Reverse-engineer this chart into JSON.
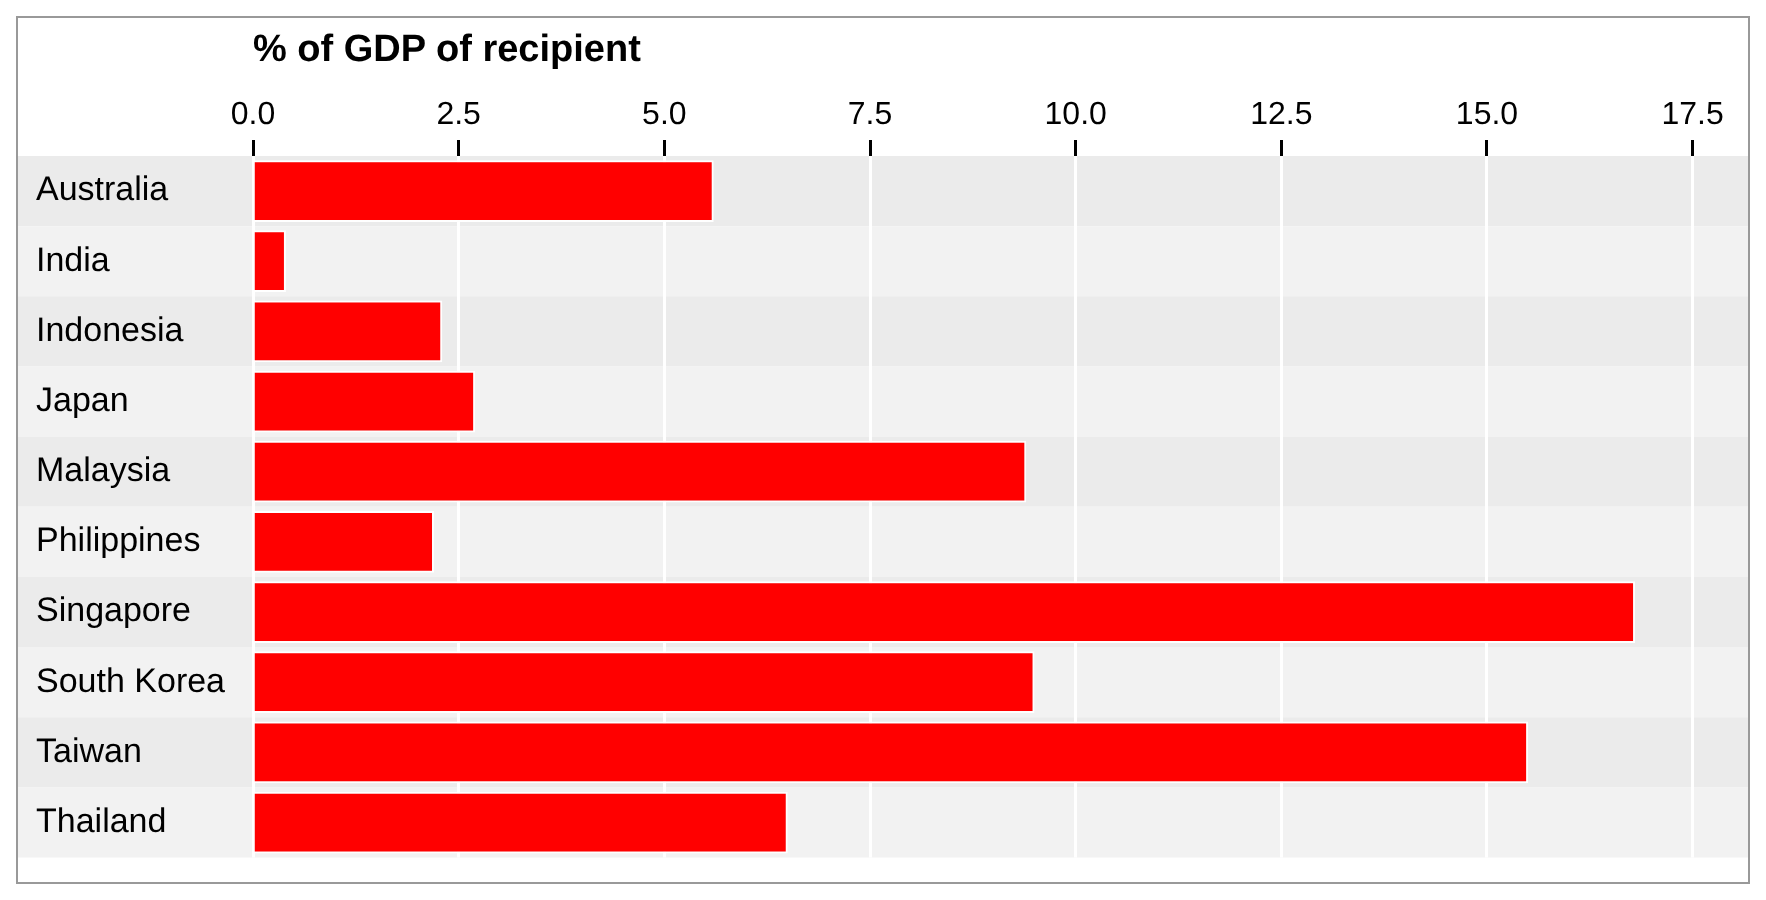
{
  "chart_data": {
    "type": "bar",
    "orientation": "horizontal",
    "xlabel": "% of GDP of recipient",
    "categories": [
      "Australia",
      "India",
      "Indonesia",
      "Japan",
      "Malaysia",
      "Philippines",
      "Singapore",
      "South Korea",
      "Taiwan",
      "Thailand"
    ],
    "values": [
      5.6,
      0.4,
      2.3,
      2.7,
      9.4,
      2.2,
      16.8,
      9.5,
      15.5,
      6.5
    ],
    "color": "#ff0000",
    "xlim": [
      0,
      18.1
    ],
    "xticks": [
      {
        "value": 0,
        "label": "0.0"
      },
      {
        "value": 2.5,
        "label": "2.5"
      },
      {
        "value": 5,
        "label": "5.0"
      },
      {
        "value": 7.5,
        "label": "7.5"
      },
      {
        "value": 10,
        "label": "10.0"
      },
      {
        "value": 12.5,
        "label": "12.5"
      },
      {
        "value": 15,
        "label": "15.0"
      },
      {
        "value": 17.5,
        "label": "17.5"
      }
    ],
    "grid": "x",
    "legend": false
  }
}
